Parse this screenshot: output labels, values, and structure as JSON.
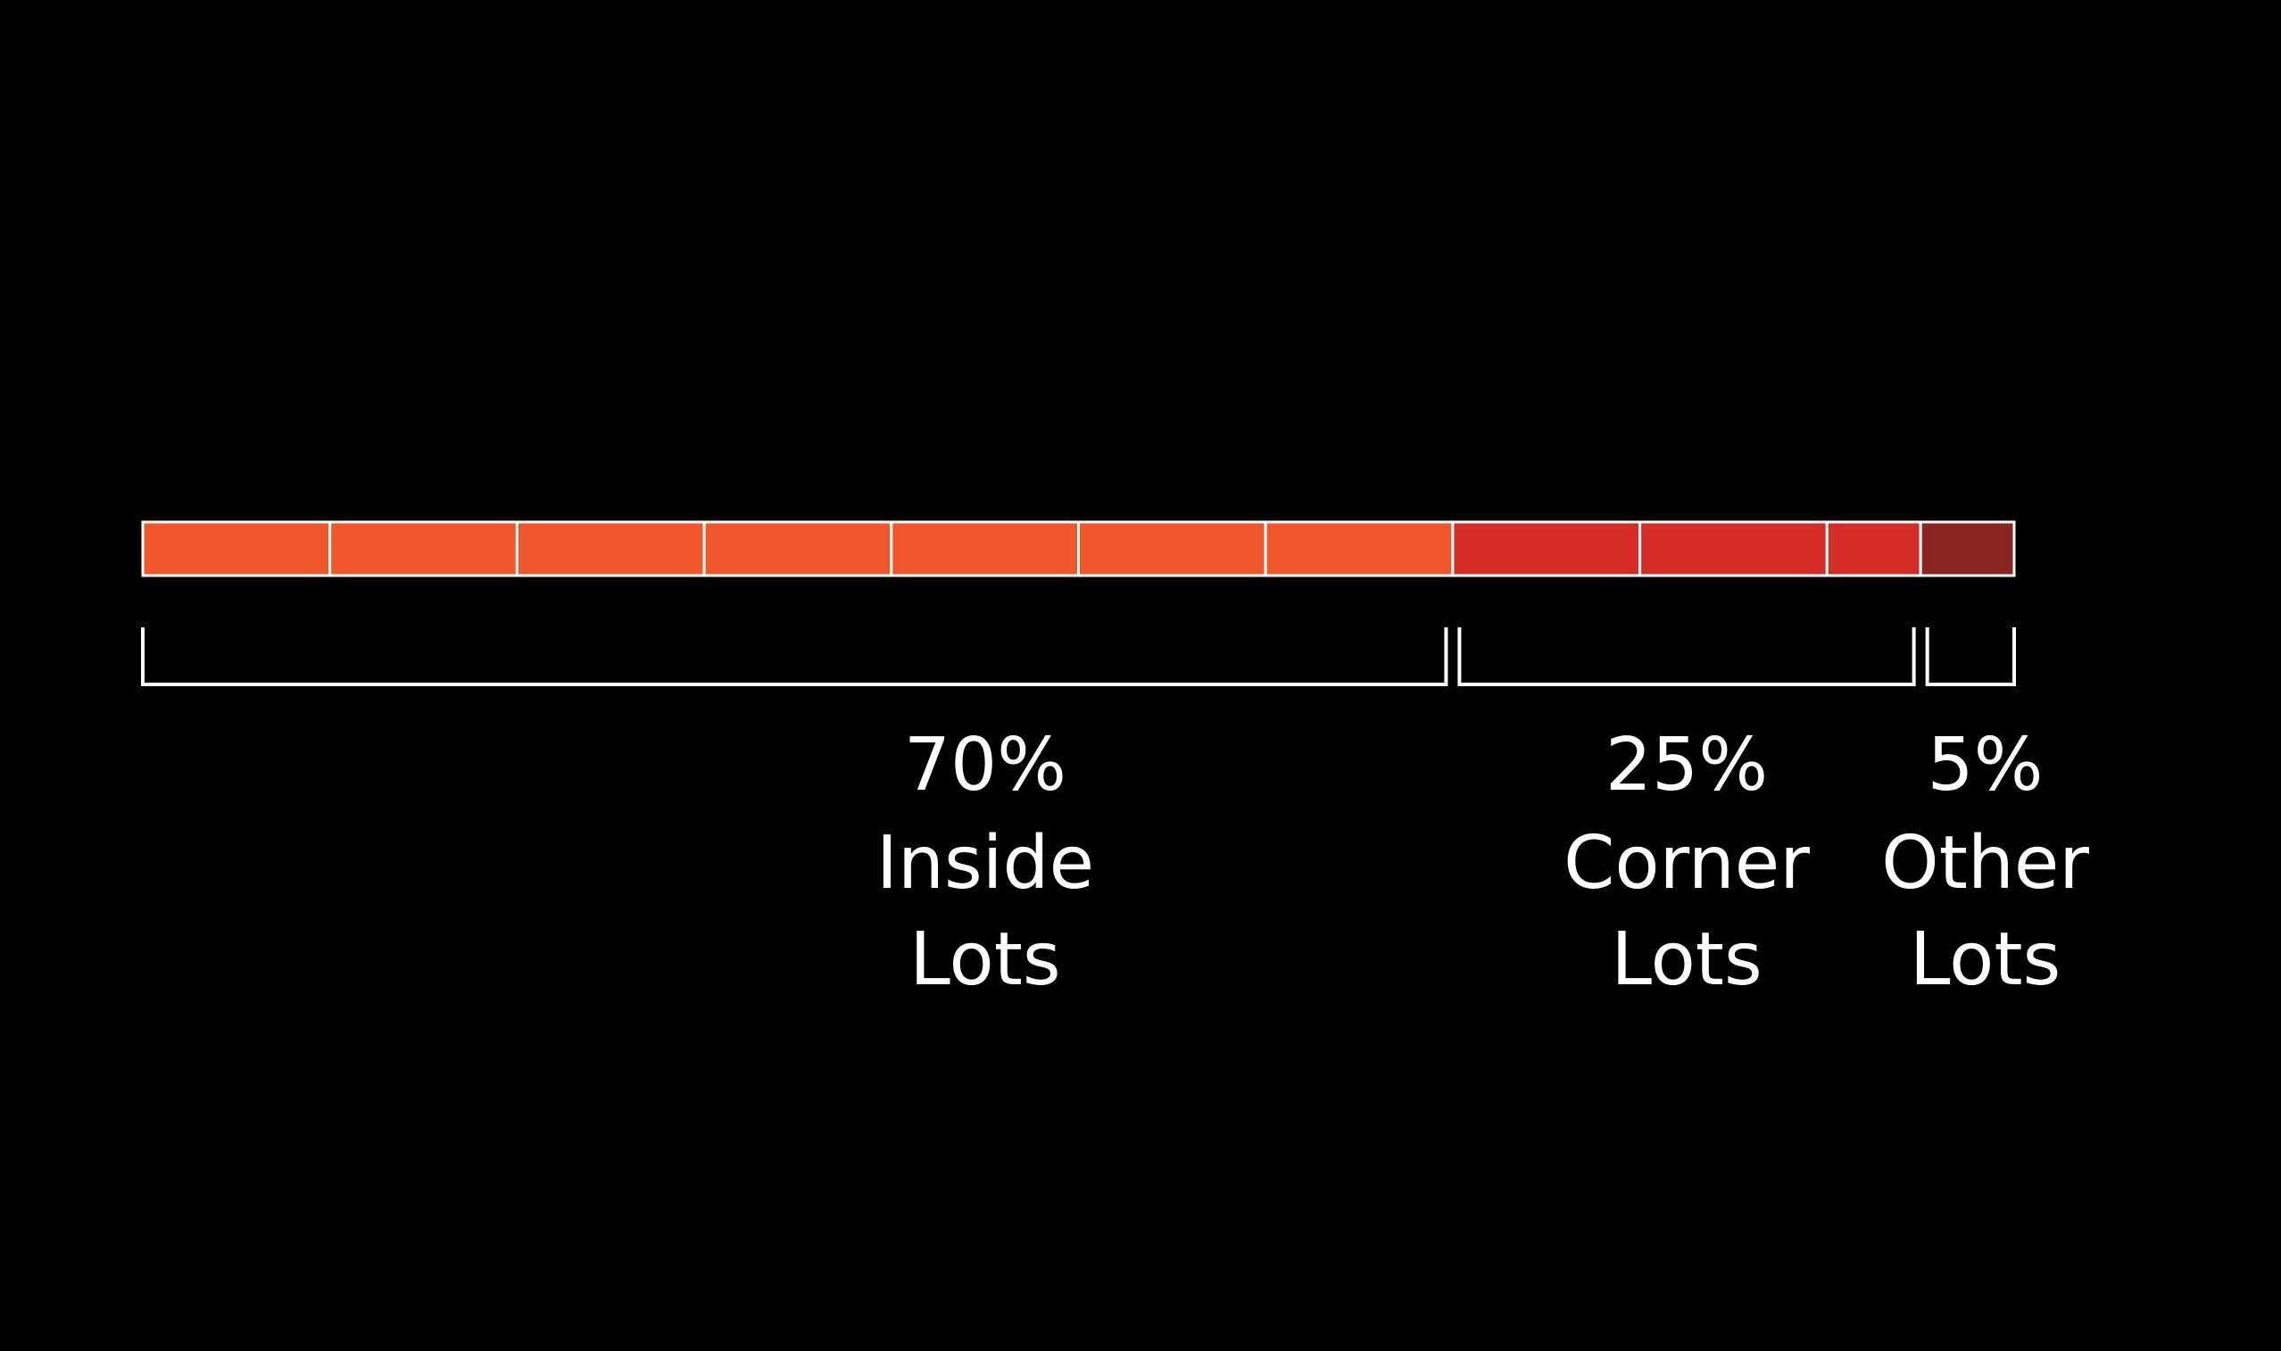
{
  "chart_data": {
    "type": "bar",
    "orientation": "horizontal-stacked",
    "unit": "%",
    "tick_size": 10,
    "categories": [
      "Inside Lots",
      "Corner Lots",
      "Other Lots"
    ],
    "values": [
      70,
      25,
      5
    ],
    "labels": [
      {
        "percent": "70%",
        "line1": "Inside",
        "line2": "Lots"
      },
      {
        "percent": "25%",
        "line1": "Corner",
        "line2": "Lots"
      },
      {
        "percent": "5%",
        "line1": "Other",
        "line2": "Lots"
      }
    ],
    "colors": [
      "#f0572d",
      "#d62c28",
      "#8a2520"
    ],
    "grid": false,
    "legend": "none"
  },
  "background_color": "#000000",
  "line_color": "#ffffff"
}
